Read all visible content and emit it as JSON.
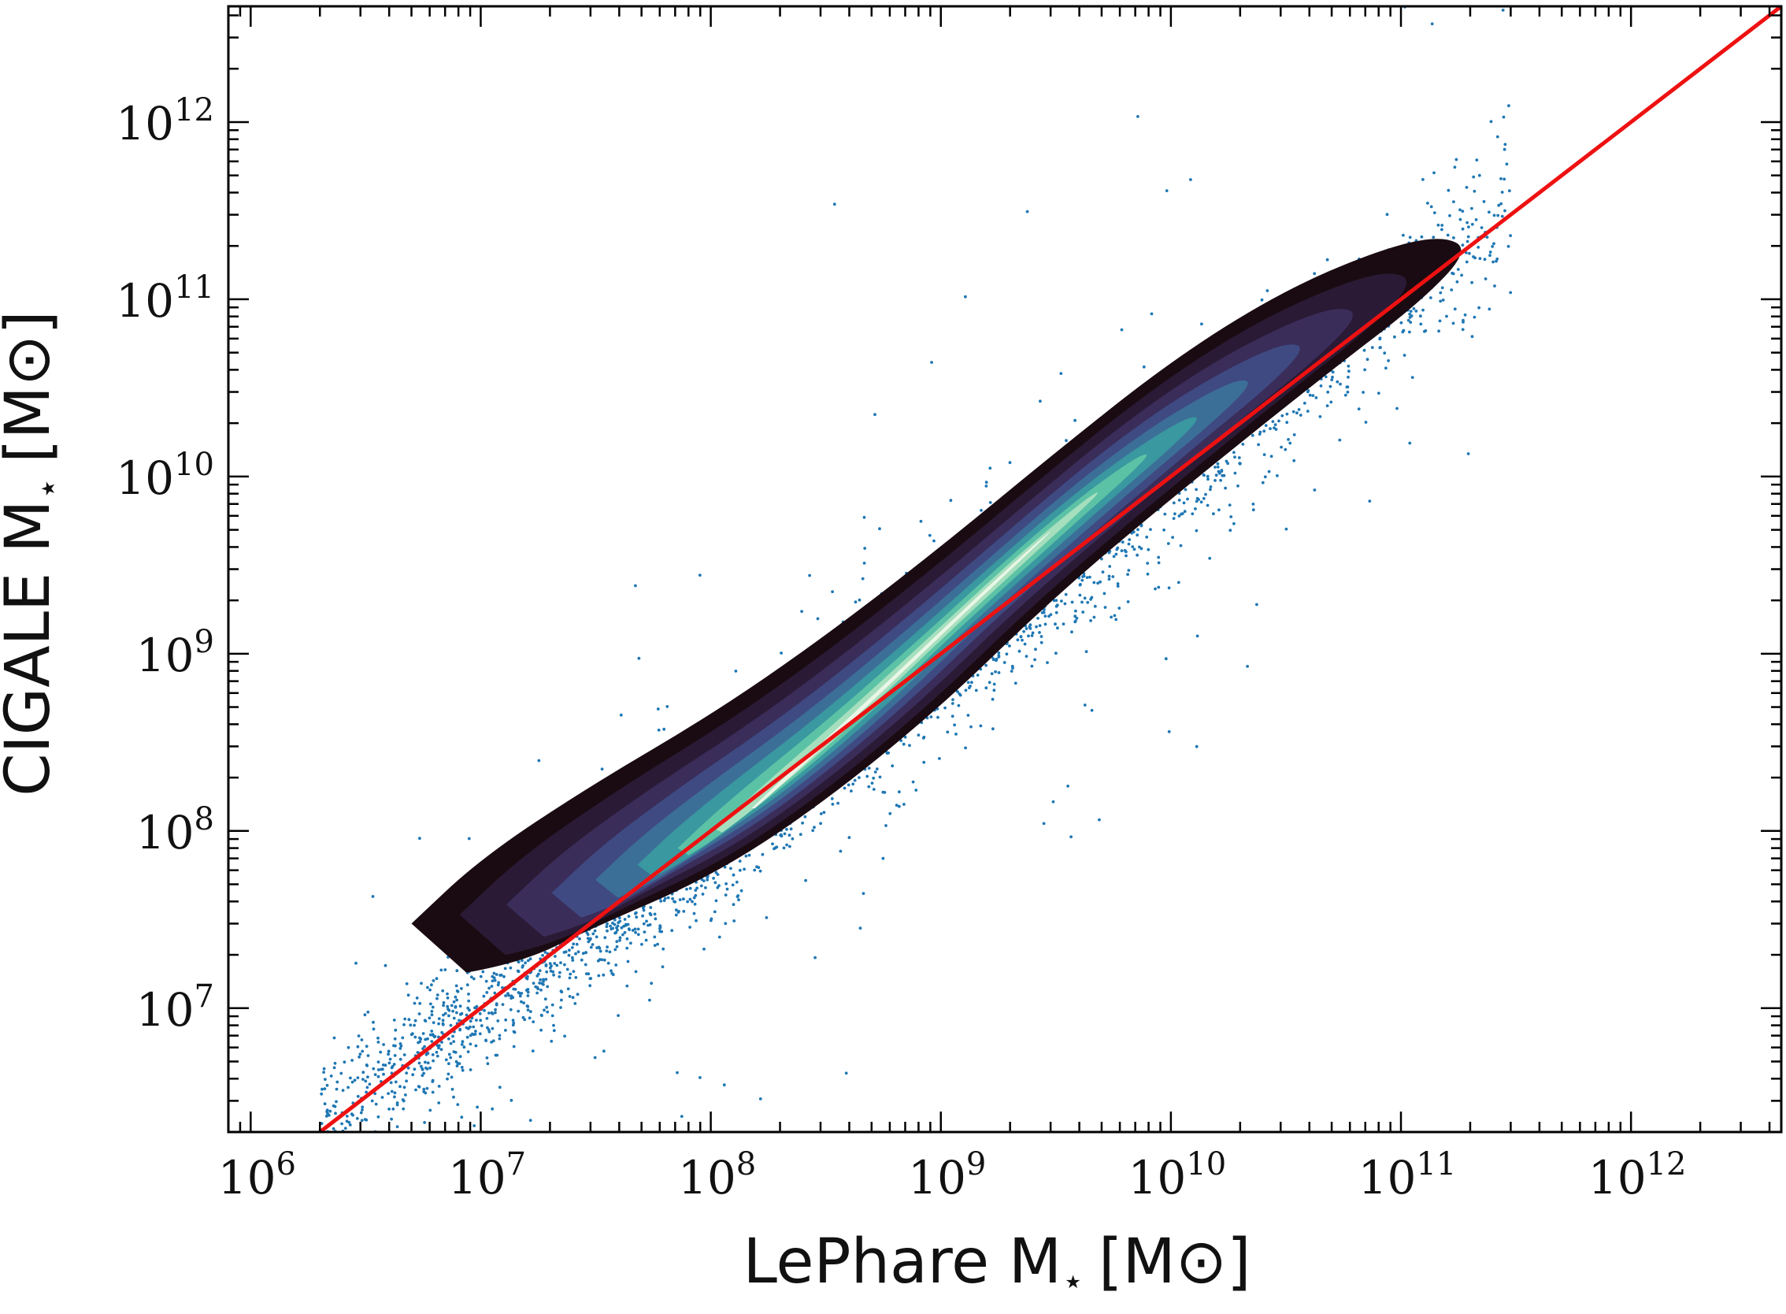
{
  "chart_data": {
    "type": "scatter",
    "xlabel": "LePhare M⋆ [M⊙]",
    "ylabel": "CIGALE M⋆ [M⊙]",
    "xlabel_parts": {
      "text": "LePhare M",
      "sub": "⋆",
      "unit": "[M⊙]"
    },
    "ylabel_parts": {
      "text": "CIGALE M",
      "sub": "⋆",
      "unit": "[M⊙]"
    },
    "xscale": "log",
    "yscale": "log",
    "xlim": [
      800000,
      4500000000000
    ],
    "ylim": [
      2000000,
      4500000000000
    ],
    "x_ticks": [
      {
        "base": "10",
        "exp": "6",
        "value": 1000000
      },
      {
        "base": "10",
        "exp": "7",
        "value": 10000000
      },
      {
        "base": "10",
        "exp": "8",
        "value": 100000000
      },
      {
        "base": "10",
        "exp": "9",
        "value": 1000000000
      },
      {
        "base": "10",
        "exp": "10",
        "value": 10000000000
      },
      {
        "base": "10",
        "exp": "11",
        "value": 100000000000
      },
      {
        "base": "10",
        "exp": "12",
        "value": 1000000000000
      }
    ],
    "y_ticks": [
      {
        "base": "10",
        "exp": "7",
        "value": 10000000
      },
      {
        "base": "10",
        "exp": "8",
        "value": 100000000
      },
      {
        "base": "10",
        "exp": "9",
        "value": 1000000000
      },
      {
        "base": "10",
        "exp": "10",
        "value": 10000000000
      },
      {
        "base": "10",
        "exp": "11",
        "value": 100000000000
      },
      {
        "base": "10",
        "exp": "12",
        "value": 1000000000000
      }
    ],
    "series": [
      {
        "kind": "scatter-points",
        "color": "#1f77b4",
        "relation": {
          "slope_dex": 0.99,
          "offset_dex": 0.12
        },
        "x_range": [
          2000000,
          300000000000
        ]
      },
      {
        "kind": "density-contours",
        "colormap": [
          "#1a0b12",
          "#2b1a35",
          "#3a2d5a",
          "#3f4a82",
          "#3c6f97",
          "#3a98a0",
          "#5cc2a6",
          "#a6dfbe",
          "#eaf6e6"
        ],
        "envelope_upper": [
          [
            5000000,
            30000000
          ],
          [
            10000000,
            70000000
          ],
          [
            30000000,
            180000000
          ],
          [
            100000000,
            450000000
          ],
          [
            300000000,
            1200000000
          ],
          [
            1000000000,
            4000000000
          ],
          [
            3000000000,
            13000000000
          ],
          [
            10000000000,
            45000000000
          ],
          [
            30000000000,
            110000000000
          ],
          [
            80000000000,
            190000000000
          ],
          [
            150000000000,
            230000000000
          ]
        ],
        "envelope_lower": [
          [
            200000000000,
            190000000000
          ],
          [
            120000000000,
            95000000000
          ],
          [
            50000000000,
            40000000000
          ],
          [
            10000000000,
            7500000000
          ],
          [
            3000000000,
            2000000000
          ],
          [
            1000000000,
            500000000
          ],
          [
            300000000,
            140000000
          ],
          [
            100000000,
            55000000
          ],
          [
            30000000,
            28000000
          ],
          [
            15000000,
            18000000
          ],
          [
            5000000,
            14000000
          ]
        ]
      },
      {
        "kind": "one-to-one-line",
        "color": "#ee1111",
        "points": [
          [
            1000000,
            1000000
          ],
          [
            4500000000000,
            4500000000000
          ]
        ]
      }
    ],
    "grid": false,
    "legend": "none"
  }
}
